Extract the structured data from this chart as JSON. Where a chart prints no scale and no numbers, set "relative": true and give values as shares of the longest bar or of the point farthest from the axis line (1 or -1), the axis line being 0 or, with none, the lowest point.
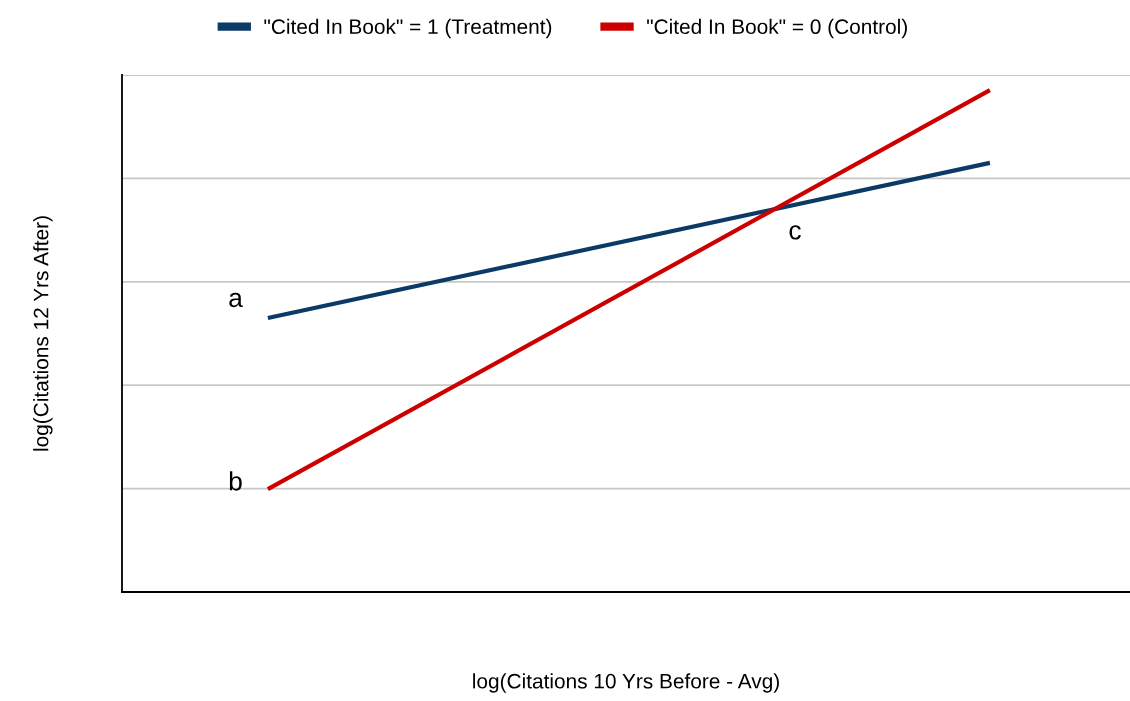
{
  "chart_data": {
    "type": "line",
    "relative": true,
    "categories": [
      null,
      null
    ],
    "xlabel": "log(Citations 10 Yrs Before - Avg)",
    "ylabel": "log(Citations 12 Yrs After)",
    "series": [
      {
        "name": "\"Cited In Book\" = 1 (Treatment)",
        "color": "#0b3a66",
        "values": [
          0.546,
          0.855
        ]
      },
      {
        "name": "\"Cited In Book\" = 0 (Control)",
        "color": "#cc0000",
        "values": [
          0.205,
          1
        ]
      }
    ],
    "annotations": [
      "a",
      "b",
      "c"
    ],
    "grid": "y",
    "legend": "top",
    "marker": "none",
    "line_style": "solid"
  }
}
